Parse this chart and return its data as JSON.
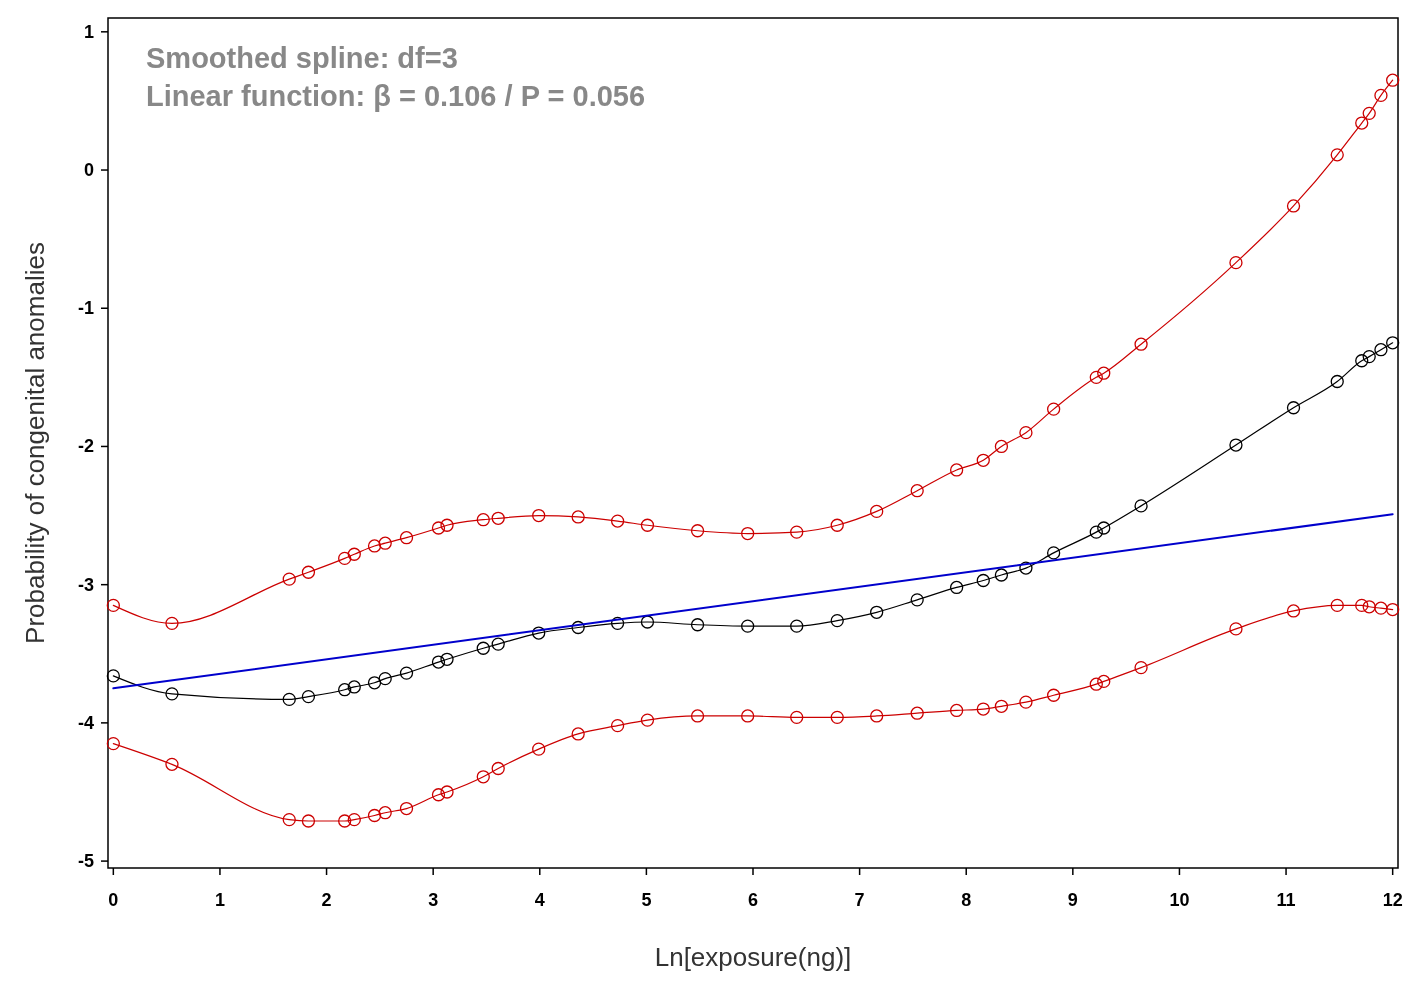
{
  "chart_data": {
    "type": "line",
    "xlabel": "Ln[exposure(ng)]",
    "ylabel": "Probability of congenital anomalies",
    "annotations": [
      "Smoothed spline: df=3",
      "Linear function: β = 0.106 / P = 0.056"
    ],
    "xlim": [
      -0.05,
      12.05
    ],
    "ylim": [
      -5.05,
      1.1
    ],
    "xticks": [
      0,
      1,
      2,
      3,
      4,
      5,
      6,
      7,
      8,
      9,
      10,
      11,
      12
    ],
    "yticks": [
      -5,
      -4,
      -3,
      -2,
      -1,
      0,
      1
    ],
    "grid": false,
    "marker": "circle",
    "line_style": "solid",
    "x": [
      0,
      0.55,
      1.65,
      1.83,
      2.17,
      2.26,
      2.45,
      2.55,
      2.75,
      3.05,
      3.13,
      3.47,
      3.61,
      3.99,
      4.36,
      4.73,
      5.01,
      5.48,
      5.95,
      6.41,
      6.79,
      7.16,
      7.54,
      7.91,
      8.16,
      8.33,
      8.56,
      8.82,
      9.22,
      9.29,
      9.64,
      10.53,
      11.07,
      11.48,
      11.71,
      11.78,
      11.89,
      12
    ],
    "series": [
      {
        "color": "#cc0000",
        "values": [
          -3.15,
          -3.28,
          -2.96,
          -2.91,
          -2.81,
          -2.78,
          -2.72,
          -2.7,
          -2.66,
          -2.59,
          -2.57,
          -2.53,
          -2.52,
          -2.5,
          -2.51,
          -2.54,
          -2.57,
          -2.61,
          -2.63,
          -2.62,
          -2.57,
          -2.47,
          -2.32,
          -2.17,
          -2.1,
          -2,
          -1.9,
          -1.73,
          -1.5,
          -1.47,
          -1.26,
          -0.67,
          -0.26,
          0.11,
          0.34,
          0.41,
          0.54,
          0.65
        ]
      },
      {
        "color": "#000000",
        "values": [
          -3.66,
          -3.79,
          -3.83,
          -3.81,
          -3.76,
          -3.74,
          -3.71,
          -3.68,
          -3.64,
          -3.56,
          -3.54,
          -3.46,
          -3.43,
          -3.35,
          -3.31,
          -3.28,
          -3.27,
          -3.29,
          -3.3,
          -3.3,
          -3.26,
          -3.2,
          -3.11,
          -3.02,
          -2.97,
          -2.93,
          -2.88,
          -2.77,
          -2.62,
          -2.59,
          -2.43,
          -1.99,
          -1.72,
          -1.53,
          -1.38,
          -1.35,
          -1.3,
          -1.25
        ]
      },
      {
        "color": "#cc0000",
        "values": [
          -4.15,
          -4.3,
          -4.7,
          -4.71,
          -4.71,
          -4.7,
          -4.67,
          -4.65,
          -4.62,
          -4.52,
          -4.5,
          -4.39,
          -4.33,
          -4.19,
          -4.08,
          -4.02,
          -3.98,
          -3.95,
          -3.95,
          -3.96,
          -3.96,
          -3.95,
          -3.93,
          -3.91,
          -3.9,
          -3.88,
          -3.85,
          -3.8,
          -3.72,
          -3.7,
          -3.6,
          -3.32,
          -3.19,
          -3.15,
          -3.15,
          -3.16,
          -3.17,
          -3.18
        ]
      },
      {
        "color": "#0000cc",
        "marker": "none",
        "x": [
          0,
          12
        ],
        "values": [
          -3.75,
          -2.49
        ]
      }
    ]
  }
}
